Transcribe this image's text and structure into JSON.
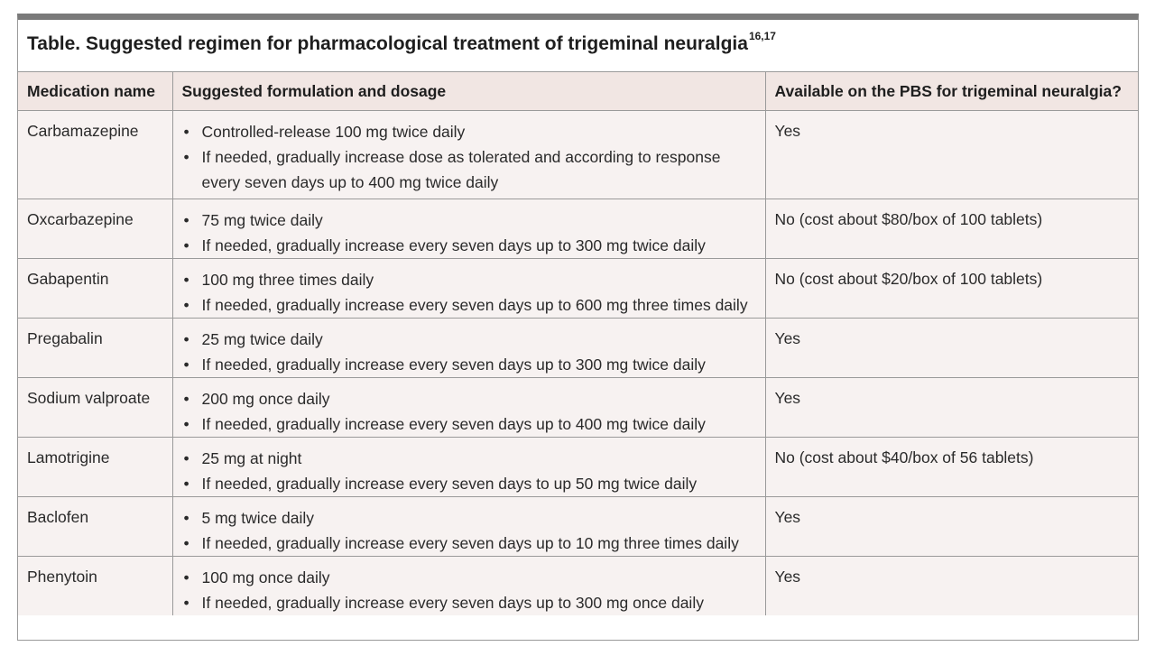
{
  "title": {
    "text": "Table. Suggested regimen for pharmacological treatment of trigeminal neuralgia",
    "superscript": "16,17"
  },
  "headers": {
    "medication": "Medication name",
    "formulation": "Suggested formulation and dosage",
    "pbs": "Available on the PBS for trigeminal neuralgia?"
  },
  "rows": [
    {
      "name": "Carbamazepine",
      "doses": [
        "Controlled-release 100 mg twice daily",
        "If needed, gradually increase dose as tolerated and according to response every seven days up to 400 mg twice daily"
      ],
      "dose_lines": [
        "Controlled-release 100 mg twice daily",
        "If needed, gradually increase dose as tolerated and according to response",
        "every seven days up to 400 mg twice daily"
      ],
      "pbs": "Yes"
    },
    {
      "name": "Oxcarbazepine",
      "doses": [
        "75 mg twice daily",
        "If needed, gradually increase every seven days up to 300 mg twice daily"
      ],
      "pbs": "No (cost about $80/box of 100 tablets)"
    },
    {
      "name": "Gabapentin",
      "doses": [
        "100 mg three times daily",
        "If needed, gradually increase every seven days up to 600 mg three times daily"
      ],
      "pbs": "No (cost about $20/box of 100 tablets)"
    },
    {
      "name": "Pregabalin",
      "doses": [
        "25 mg twice daily",
        "If needed, gradually increase every seven days up to 300 mg twice daily"
      ],
      "pbs": "Yes"
    },
    {
      "name": "Sodium valproate",
      "doses": [
        "200 mg once daily",
        "If needed, gradually increase every seven days up to 400 mg twice daily"
      ],
      "pbs": "Yes"
    },
    {
      "name": "Lamotrigine",
      "doses": [
        "25 mg at night",
        "If needed, gradually increase every seven days to up 50 mg twice daily"
      ],
      "pbs": "No (cost about $40/box of 56 tablets)"
    },
    {
      "name": "Baclofen",
      "doses": [
        "5 mg twice daily",
        "If needed, gradually increase every seven days up to 10 mg three times daily"
      ],
      "pbs": "Yes"
    },
    {
      "name": "Phenytoin",
      "doses": [
        "100 mg once daily",
        "If needed, gradually increase every seven days up to 300 mg once daily"
      ],
      "pbs": "Yes"
    }
  ]
}
